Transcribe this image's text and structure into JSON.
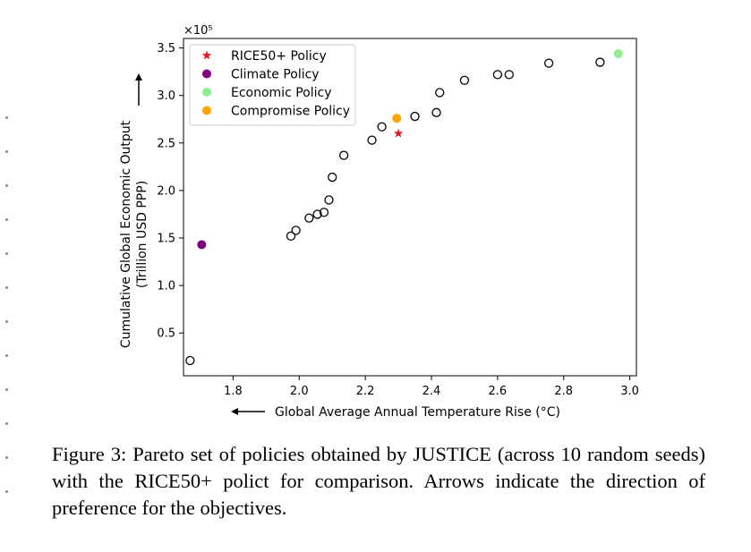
{
  "chart_data": {
    "type": "scatter",
    "title": "",
    "xlabel": "Global Average Annual Temperature Rise (°C)",
    "ylabel_line1": "Cumulative Global Economic Output",
    "ylabel_line2": "(Trillion USD PPP)",
    "y_scale_label": "×10⁵",
    "xlim": [
      1.65,
      3.02
    ],
    "ylim": [
      0.05,
      3.6
    ],
    "xticks": [
      1.8,
      2.0,
      2.2,
      2.4,
      2.6,
      2.8,
      3.0
    ],
    "xtick_labels": [
      "1.8",
      "2.0",
      "2.2",
      "2.4",
      "2.6",
      "2.8",
      "3.0"
    ],
    "yticks": [
      0.5,
      1.0,
      1.5,
      2.0,
      2.5,
      3.0,
      3.5
    ],
    "ytick_labels": [
      "0.5",
      "1.0",
      "1.5",
      "2.0",
      "2.5",
      "3.0",
      "3.5"
    ],
    "legend_position": "top-left",
    "legend": [
      {
        "label": "RICE50+ Policy",
        "marker": "star",
        "color": "#e41a1c"
      },
      {
        "label": "Climate Policy",
        "marker": "circle",
        "color": "#800080"
      },
      {
        "label": "Economic Policy",
        "marker": "circle",
        "color": "#90ee90"
      },
      {
        "label": "Compromise Policy",
        "marker": "circle",
        "color": "#ffa500"
      }
    ],
    "series": [
      {
        "name": "Pareto set",
        "marker": "open-circle",
        "color": "#000000",
        "points": [
          {
            "x": 1.67,
            "y": 0.21
          },
          {
            "x": 1.975,
            "y": 1.52
          },
          {
            "x": 1.99,
            "y": 1.58
          },
          {
            "x": 2.03,
            "y": 1.71
          },
          {
            "x": 2.055,
            "y": 1.75
          },
          {
            "x": 2.075,
            "y": 1.77
          },
          {
            "x": 2.09,
            "y": 1.9
          },
          {
            "x": 2.1,
            "y": 2.14
          },
          {
            "x": 2.135,
            "y": 2.37
          },
          {
            "x": 2.22,
            "y": 2.53
          },
          {
            "x": 2.25,
            "y": 2.67
          },
          {
            "x": 2.35,
            "y": 2.78
          },
          {
            "x": 2.415,
            "y": 2.82
          },
          {
            "x": 2.425,
            "y": 3.03
          },
          {
            "x": 2.5,
            "y": 3.16
          },
          {
            "x": 2.6,
            "y": 3.22
          },
          {
            "x": 2.635,
            "y": 3.22
          },
          {
            "x": 2.755,
            "y": 3.34
          },
          {
            "x": 2.91,
            "y": 3.35
          }
        ]
      },
      {
        "name": "RICE50+ Policy",
        "marker": "star",
        "color": "#e41a1c",
        "points": [
          {
            "x": 2.3,
            "y": 2.6
          }
        ]
      },
      {
        "name": "Climate Policy",
        "marker": "circle",
        "color": "#800080",
        "points": [
          {
            "x": 1.705,
            "y": 1.43
          }
        ]
      },
      {
        "name": "Economic Policy",
        "marker": "circle",
        "color": "#90ee90",
        "points": [
          {
            "x": 2.965,
            "y": 3.44
          }
        ]
      },
      {
        "name": "Compromise Policy",
        "marker": "circle",
        "color": "#ffa500",
        "points": [
          {
            "x": 2.295,
            "y": 2.76
          }
        ]
      }
    ]
  },
  "caption": {
    "prefix": "Figure 3: Pareto set of policies obtained by ",
    "name_first": "J",
    "name_rest": "USTICE",
    "suffix": " (across 10 random seeds) with the RICE50+ polict for comparison. Arrows indicate the direction of preference for the objectives."
  }
}
